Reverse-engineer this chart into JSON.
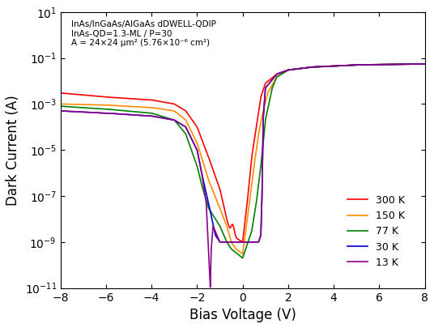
{
  "xlabel": "Bias Voltage (V)",
  "ylabel": "Dark Current (A)",
  "annotation_lines": [
    "InAs/InGaAs/AlGaAs dDWELL-QDIP",
    "InAs-QD=1.3-ML / P=30",
    "A = 24×24 μm² (5.76×10⁻⁶ cm²)"
  ],
  "xlim": [
    -8,
    8
  ],
  "ylim": [
    1e-11,
    10
  ],
  "temperatures": [
    300,
    150,
    77,
    30,
    13
  ],
  "labels": [
    "300 K",
    "150 K",
    "77 K",
    "30 K",
    "13 K"
  ],
  "colors": [
    "#ff0000",
    "#ff8c00",
    "#008000",
    "#0000cd",
    "#8b008b"
  ],
  "background_color": "#ffffff"
}
